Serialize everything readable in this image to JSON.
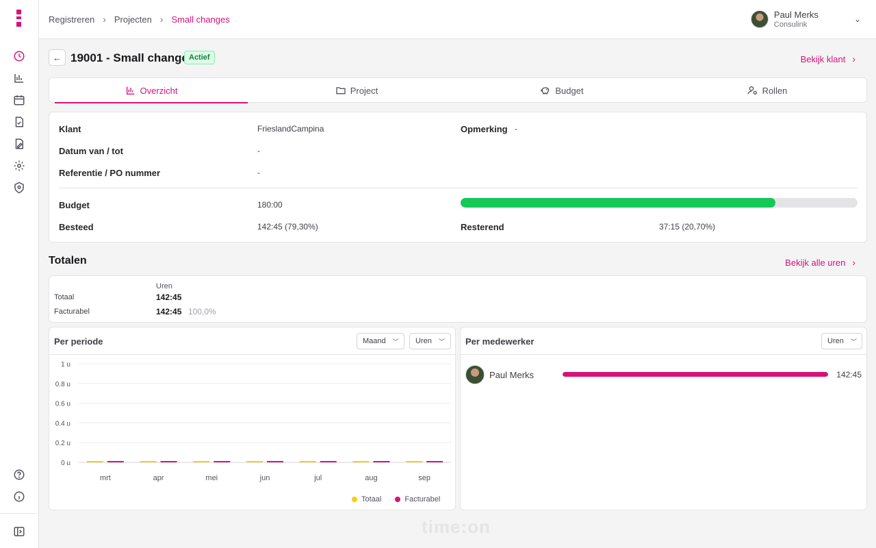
{
  "breadcrumb": [
    "Registreren",
    "Projecten",
    "Small changes"
  ],
  "user": {
    "name": "Paul Merks",
    "org": "Consulink"
  },
  "page": {
    "title": "19001 - Small changes",
    "status": "Actief",
    "client_link": "Bekijk klant"
  },
  "tabs": [
    {
      "label": "Overzicht",
      "icon": "bar-chart-icon",
      "active": true
    },
    {
      "label": "Project",
      "icon": "folder-icon",
      "active": false
    },
    {
      "label": "Budget",
      "icon": "piggy-bank-icon",
      "active": false
    },
    {
      "label": "Rollen",
      "icon": "user-gear-icon",
      "active": false
    }
  ],
  "overview": {
    "client_label": "Klant",
    "client": "FrieslandCampina",
    "remark_label": "Opmerking",
    "remark": "-",
    "dates_label": "Datum van / tot",
    "dates": "-",
    "reference_label": "Referentie / PO nummer",
    "reference": "-",
    "budget_label": "Budget",
    "budget": "180:00",
    "spent_label": "Besteed",
    "spent": "142:45 (79,30%)",
    "remaining_label": "Resterend",
    "remaining": "37:15 (20,70%)",
    "progress_fraction": 0.793,
    "progress_color": "#14c957"
  },
  "totals": {
    "title": "Totalen",
    "all_hours_link": "Bekijk alle uren",
    "column_header": "Uren",
    "total_label": "Totaal",
    "total_value": "142:45",
    "billable_label": "Facturabel",
    "billable_value": "142:45",
    "billable_pct": "100,0%"
  },
  "per_period": {
    "title": "Per periode",
    "period_select": "Maand",
    "unit_select": "Uren"
  },
  "per_employee": {
    "title": "Per medewerker",
    "unit_select": "Uren",
    "employees": [
      {
        "name": "Paul Merks",
        "value": "142:45",
        "fraction": 1.0
      }
    ]
  },
  "chart_data": {
    "type": "bar",
    "categories": [
      "mrt",
      "apr",
      "mei",
      "jun",
      "jul",
      "aug",
      "sep"
    ],
    "series": [
      {
        "name": "Totaal",
        "values": [
          0,
          0,
          0,
          0,
          0,
          0,
          0
        ],
        "color": "#facc15"
      },
      {
        "name": "Facturabel",
        "values": [
          0,
          0,
          0,
          0,
          0,
          0,
          0
        ],
        "color": "#d6127a"
      }
    ],
    "yticks": [
      "0 u",
      "0.2 u",
      "0.4 u",
      "0.6 u",
      "0.8 u",
      "1 u"
    ],
    "ylim": [
      0,
      1
    ],
    "grid": true,
    "legend": "bottom-right"
  },
  "brand": {
    "accent": "#d6127a",
    "watermark": "time:on"
  }
}
